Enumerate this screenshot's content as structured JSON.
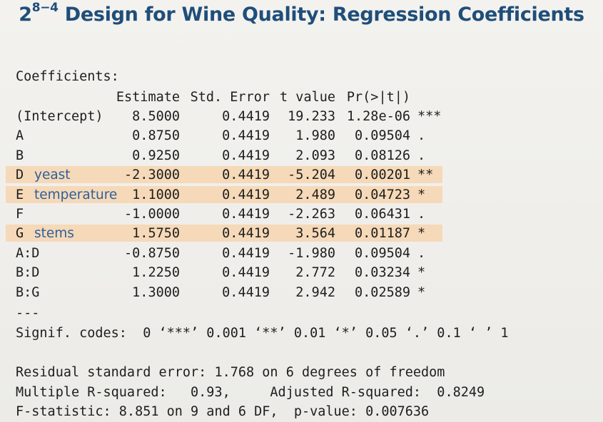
{
  "slide": {
    "title_prefix": "2",
    "title_exponent": "8−4",
    "title_text": " Design for Wine Quality: Regression Coefficients"
  },
  "output": {
    "coefficients_label": "Coefficients:",
    "headers": [
      "Estimate",
      "Std. Error",
      "t value",
      "Pr(>|t|)"
    ],
    "rows": [
      {
        "term": "(Intercept)",
        "factor_name": "",
        "estimate": "8.5000",
        "std_error": "0.4419",
        "t_value": "19.233",
        "p_value": "1.28e-06",
        "signif": "***",
        "highlight": false
      },
      {
        "term": "A",
        "factor_name": "",
        "estimate": "0.8750",
        "std_error": "0.4419",
        "t_value": "1.980",
        "p_value": "0.09504",
        "signif": ".",
        "highlight": false
      },
      {
        "term": "B",
        "factor_name": "",
        "estimate": "0.9250",
        "std_error": "0.4419",
        "t_value": "2.093",
        "p_value": "0.08126",
        "signif": ".",
        "highlight": false
      },
      {
        "term": "D",
        "factor_name": "yeast",
        "estimate": "-2.3000",
        "std_error": "0.4419",
        "t_value": "-5.204",
        "p_value": "0.00201",
        "signif": "**",
        "highlight": true
      },
      {
        "term": "E",
        "factor_name": "temperature",
        "estimate": "1.1000",
        "std_error": "0.4419",
        "t_value": "2.489",
        "p_value": "0.04723",
        "signif": "*",
        "highlight": true
      },
      {
        "term": "F",
        "factor_name": "",
        "estimate": "-1.0000",
        "std_error": "0.4419",
        "t_value": "-2.263",
        "p_value": "0.06431",
        "signif": ".",
        "highlight": false
      },
      {
        "term": "G",
        "factor_name": "stems",
        "estimate": "1.5750",
        "std_error": "0.4419",
        "t_value": "3.564",
        "p_value": "0.01187",
        "signif": "*",
        "highlight": true
      },
      {
        "term": "A:D",
        "factor_name": "",
        "estimate": "-0.8750",
        "std_error": "0.4419",
        "t_value": "-1.980",
        "p_value": "0.09504",
        "signif": ".",
        "highlight": false
      },
      {
        "term": "B:D",
        "factor_name": "",
        "estimate": "1.2250",
        "std_error": "0.4419",
        "t_value": "2.772",
        "p_value": "0.03234",
        "signif": "*",
        "highlight": false
      },
      {
        "term": "B:G",
        "factor_name": "",
        "estimate": "1.3000",
        "std_error": "0.4419",
        "t_value": "2.942",
        "p_value": "0.02589",
        "signif": "*",
        "highlight": false
      }
    ],
    "separator": "---",
    "signif_codes": "Signif. codes:  0 ‘***’ 0.001 ‘**’ 0.01 ‘*’ 0.05 ‘.’ 0.1 ‘ ’ 1",
    "residual_se": "Residual standard error: 1.768 on 6 degrees of freedom",
    "r_squared": "Multiple R-squared:   0.93,     Adjusted R-squared:  0.8249",
    "f_statistic": "F-statistic: 8.851 on 9 and 6 DF,  p-value: 0.007636"
  },
  "colors": {
    "title": "#1f4e79",
    "factor_name": "#2e5f9c",
    "highlight": "#f6d9b8",
    "text": "#1e1e1e",
    "background": "#efeeea"
  }
}
